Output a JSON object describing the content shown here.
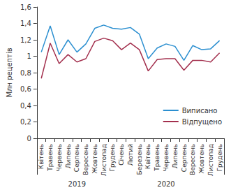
{
  "chart_data": {
    "type": "line",
    "y_label": "Млн рецептів",
    "categories": [
      "Квітень",
      "Травень",
      "Червень",
      "Липень",
      "Серпень",
      "Вересень",
      "Жовтень",
      "Листопад",
      "Грудень",
      "Січень",
      "Лютий",
      "Березень",
      "Квітень",
      "Травень",
      "Червень",
      "Липень",
      "Серпень",
      "Вересень",
      "Жовтень",
      "Листопад",
      "Грудень"
    ],
    "groups": [
      {
        "label": "2019",
        "count": 9
      },
      {
        "label": "2020",
        "count": 12
      }
    ],
    "series": [
      {
        "name": "Виписано",
        "color": "#2b8fd0",
        "values": [
          1.05,
          1.37,
          1.02,
          1.2,
          1.05,
          1.15,
          1.34,
          1.38,
          1.34,
          1.33,
          1.35,
          1.27,
          0.97,
          1.1,
          1.15,
          1.12,
          0.95,
          1.13,
          1.08,
          1.09,
          1.19
        ]
      },
      {
        "name": "Відпущено",
        "color": "#a3304e",
        "values": [
          0.73,
          1.16,
          0.91,
          1.02,
          0.93,
          0.97,
          1.18,
          1.22,
          1.19,
          1.08,
          1.16,
          1.08,
          0.82,
          0.96,
          0.97,
          0.97,
          0.83,
          0.95,
          0.95,
          0.93,
          1.04
        ]
      }
    ],
    "ylim": [
      0,
      1.6
    ],
    "yticks": [
      0,
      {
        "value": 0.2,
        "label": "0,2"
      },
      {
        "value": 0.4,
        "label": "0,4"
      },
      {
        "value": 0.6,
        "label": "0,6"
      },
      {
        "value": 0.8,
        "label": "0,8"
      },
      1,
      {
        "value": 1.2,
        "label": "1,2"
      },
      {
        "value": 1.4,
        "label": "1,4"
      },
      {
        "value": 1.6,
        "label": "1,6"
      }
    ],
    "grid": false,
    "legend": "lower right"
  }
}
